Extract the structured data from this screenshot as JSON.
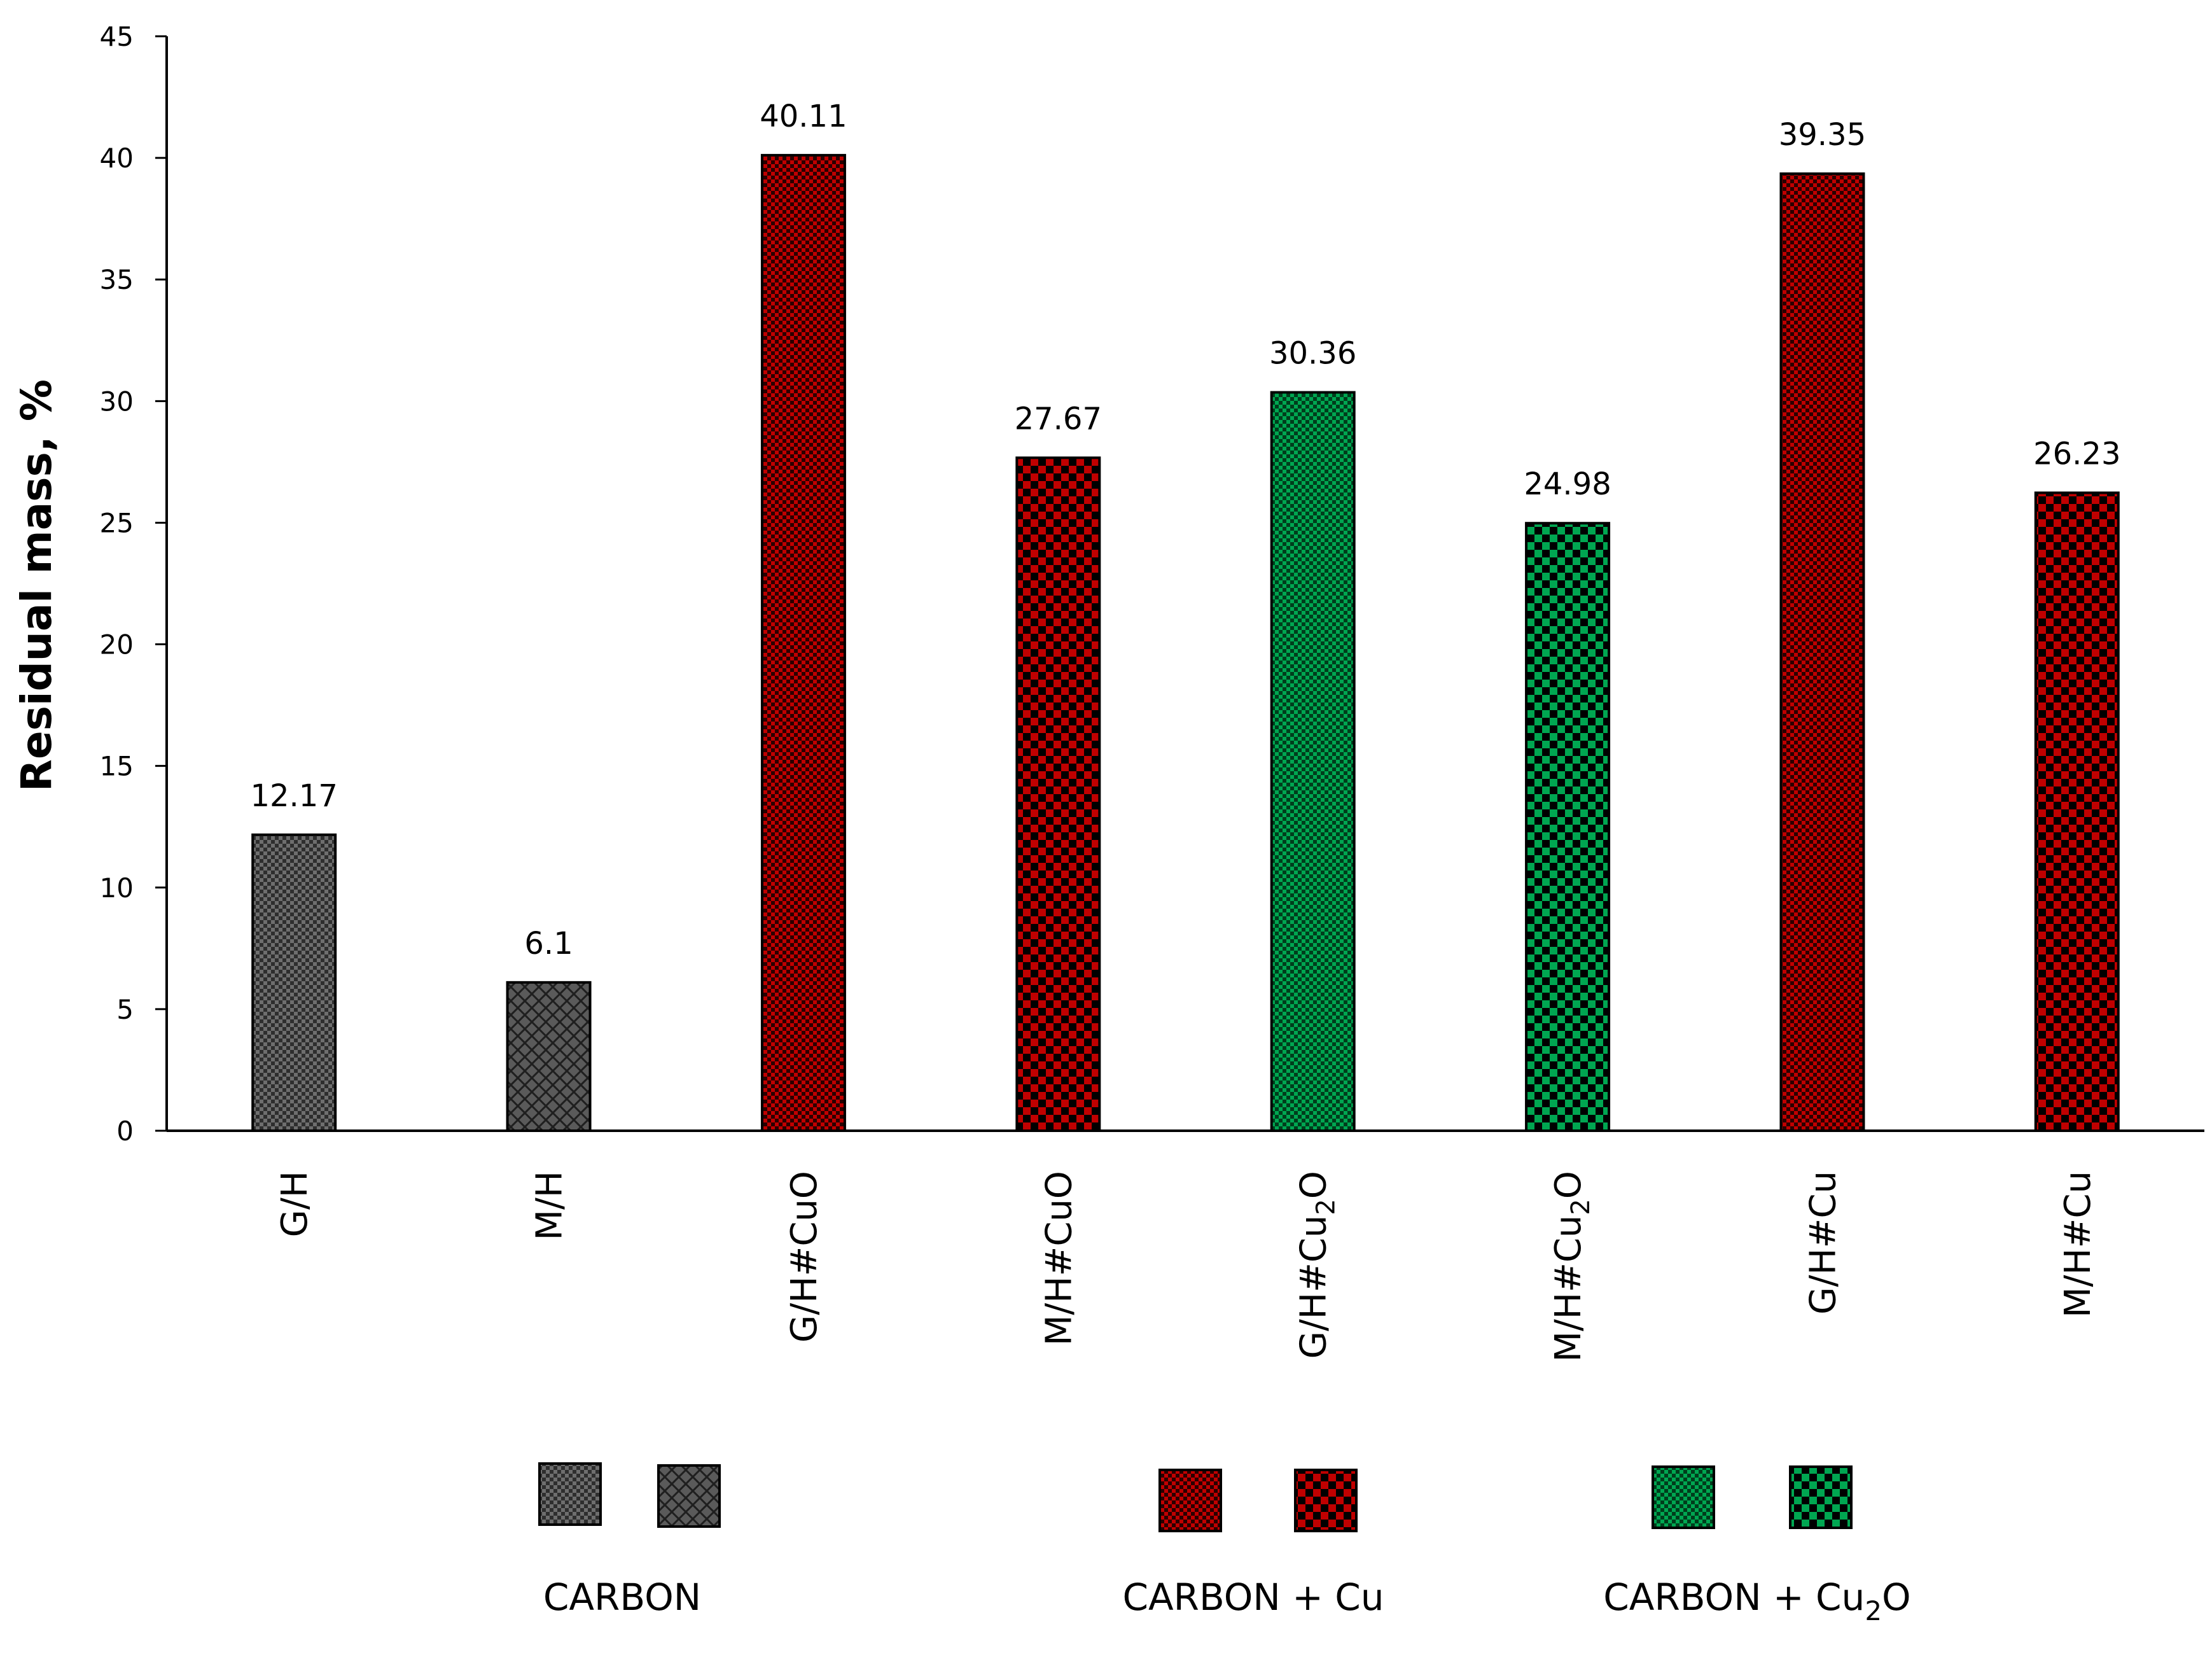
{
  "chart_data": {
    "type": "bar",
    "ylabel": "Residual mass, %",
    "ylim": [
      0,
      45
    ],
    "yticks": [
      0,
      5,
      10,
      15,
      20,
      25,
      30,
      35,
      40,
      45
    ],
    "grid": false,
    "categories": [
      {
        "base": "G/H",
        "sub": ""
      },
      {
        "base": "M/H",
        "sub": ""
      },
      {
        "base": "G/H#CuO",
        "sub": ""
      },
      {
        "base": "M/H#CuO",
        "sub": ""
      },
      {
        "base": "G/H#Cu",
        "sub": "2",
        "tail": "O"
      },
      {
        "base": "M/H#Cu",
        "sub": "2",
        "tail": "O"
      },
      {
        "base": "G/H#Cu",
        "sub": ""
      },
      {
        "base": "M/H#Cu",
        "sub": ""
      }
    ],
    "values": [
      12.17,
      6.1,
      40.11,
      27.67,
      30.36,
      24.98,
      39.35,
      26.23
    ],
    "value_labels": [
      "12.17",
      "6.1",
      "40.11",
      "27.67",
      "30.36",
      "24.98",
      "39.35",
      "26.23"
    ],
    "bar_styles": [
      "dark-fine",
      "dark-diamond",
      "red-fine",
      "red-checker",
      "green-fine",
      "green-checker",
      "red-fine",
      "red-checker"
    ],
    "colors": {
      "dark": "#3a3a3a",
      "dark_light": "#8c8c8c",
      "red": "#c00000",
      "red_dark": "#000000",
      "green": "#00a651",
      "green_dark": "#000000"
    },
    "legend": {
      "placement": "bottom",
      "groups": [
        {
          "label": "CARBON",
          "label_sub": "",
          "label_tail": "",
          "swatches": [
            "dark-fine",
            "dark-diamond"
          ]
        },
        {
          "label": "CARBON + Cu",
          "label_sub": "",
          "label_tail": "",
          "swatches": [
            "red-fine",
            "red-checker"
          ]
        },
        {
          "label": "CARBON + Cu",
          "label_sub": "2",
          "label_tail": "O",
          "swatches": [
            "green-fine",
            "green-checker"
          ]
        }
      ]
    }
  }
}
